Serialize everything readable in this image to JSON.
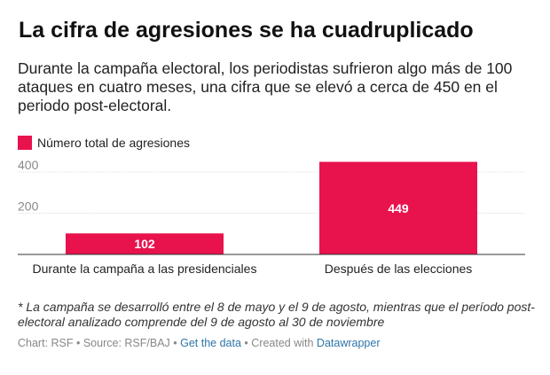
{
  "title": "La cifra de agresiones se ha cuadruplicado",
  "subtitle": "Durante la campaña electoral, los periodistas sufrieron algo más de 100 ataques en cuatro meses, una cifra que se elevó a cerca de 450 en el periodo post-electoral.",
  "notes": "* La campaña se desarrolló entre el 8 de mayo y el 9 de agosto, mientras que el período post-electoral analizado comprende del 9 de agosto al 30 de noviembre",
  "footer": {
    "chart_label": "Chart: RSF",
    "sep1": " • ",
    "source_label": "Source: RSF/BAJ",
    "sep2": " • ",
    "get_data_label": "Get the data",
    "sep3": " • ",
    "created_with_label": "Created with ",
    "datawrapper_label": "Datawrapper"
  },
  "colors": {
    "bar": "#e8124d",
    "grid": "#e0e0e0",
    "axis": "#333333",
    "link": "#2f75a8"
  },
  "chart_data": {
    "type": "bar",
    "title": "La cifra de agresiones se ha cuadruplicado",
    "subtitle": "Durante la campaña electoral, los periodistas sufrieron algo más de 100 ataques en cuatro meses, una cifra que se elevó a cerca de 450 en el periodo post-electoral.",
    "categories": [
      "Durante la campaña a las presidenciales",
      "Después de las elecciones"
    ],
    "series": [
      {
        "name": "Número total de agresiones",
        "values": [
          102,
          449
        ]
      }
    ],
    "value_labels": [
      "102",
      "449"
    ],
    "y_ticks": [
      200,
      400
    ],
    "y_tick_labels": [
      "200",
      "400"
    ],
    "ylim": [
      0,
      460
    ],
    "grid": true,
    "legend": "top-left",
    "xlabel": "",
    "ylabel": ""
  }
}
